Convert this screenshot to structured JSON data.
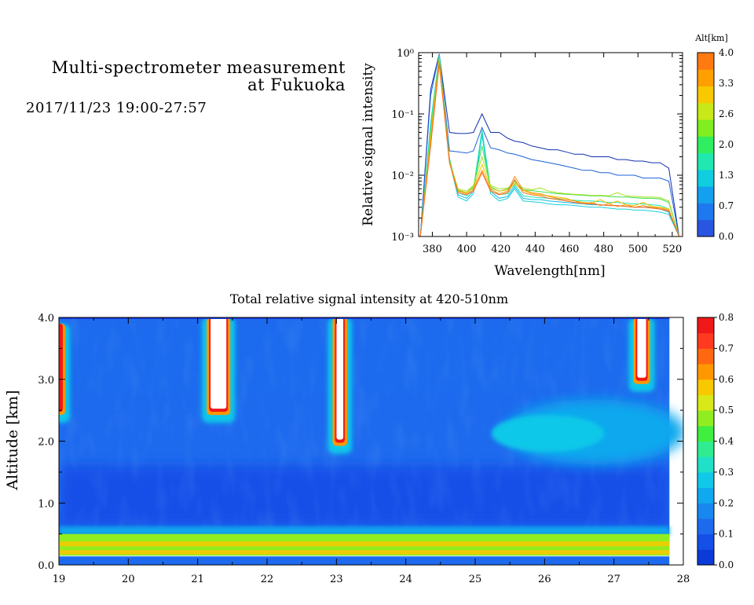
{
  "header": {
    "title_line1": "Multi-spectrometer measurement",
    "title_line2": "at Fukuoka",
    "date_range": "2017/11/23 19:00-27:57"
  },
  "chart_data": [
    {
      "type": "line",
      "title": "",
      "xlabel": "Wavelength[nm]",
      "ylabel": "Relative signal intensity",
      "xlim": [
        372,
        526
      ],
      "ylim": [
        0.001,
        1
      ],
      "yscale": "log",
      "xticks": [
        "380",
        "400",
        "420",
        "440",
        "460",
        "480",
        "500",
        "520"
      ],
      "yticks": [
        "10⁰",
        "10⁻¹",
        "10⁻²",
        "10⁻³"
      ],
      "grid": false,
      "colorbar": {
        "label": "Alt[km]",
        "ticks": [
          "4.0",
          "3.3",
          "2.6",
          "2.0",
          "1.3",
          "0.7",
          "0.0"
        ],
        "colors": [
          "#2a55e0",
          "#1e78ee",
          "#14a0ee",
          "#10cde0",
          "#20e8b0",
          "#30ee60",
          "#80ee20",
          "#c8e818",
          "#f8c800",
          "#ffa000",
          "#ff7a10"
        ]
      },
      "x": [
        373,
        379,
        384,
        390,
        395,
        400,
        404,
        409,
        414,
        419,
        424,
        428,
        433,
        438,
        443,
        448,
        453,
        458,
        463,
        468,
        473,
        478,
        483,
        488,
        493,
        498,
        503,
        508,
        513,
        518,
        524
      ],
      "series": [
        {
          "color": "#1030b0",
          "values": [
            0.001,
            0.25,
            0.95,
            0.05,
            0.048,
            0.048,
            0.05,
            0.1,
            0.05,
            0.05,
            0.04,
            0.036,
            0.034,
            0.03,
            0.028,
            0.026,
            0.026,
            0.024,
            0.022,
            0.022,
            0.02,
            0.02,
            0.02,
            0.018,
            0.018,
            0.017,
            0.017,
            0.016,
            0.016,
            0.013,
            0.001
          ]
        },
        {
          "color": "#1e60d8",
          "values": [
            0.001,
            0.2,
            0.95,
            0.025,
            0.024,
            0.023,
            0.025,
            0.06,
            0.028,
            0.026,
            0.023,
            0.022,
            0.02,
            0.018,
            0.017,
            0.016,
            0.015,
            0.014,
            0.013,
            0.012,
            0.012,
            0.011,
            0.011,
            0.01,
            0.01,
            0.01,
            0.009,
            0.009,
            0.009,
            0.008,
            0.001
          ]
        },
        {
          "color": "#10b8e8",
          "values": [
            0.001,
            0.07,
            0.9,
            0.018,
            0.0048,
            0.0042,
            0.0055,
            0.05,
            0.0055,
            0.0042,
            0.0045,
            0.0065,
            0.0042,
            0.004,
            0.004,
            0.0038,
            0.0037,
            0.0036,
            0.0035,
            0.0034,
            0.0033,
            0.0033,
            0.0032,
            0.0032,
            0.0031,
            0.003,
            0.003,
            0.003,
            0.0028,
            0.0025,
            0.001
          ]
        },
        {
          "color": "#18d0d8",
          "values": [
            0.001,
            0.06,
            0.9,
            0.017,
            0.0044,
            0.0038,
            0.005,
            0.045,
            0.005,
            0.0038,
            0.0042,
            0.006,
            0.0038,
            0.0037,
            0.0036,
            0.0034,
            0.0033,
            0.0033,
            0.0032,
            0.0031,
            0.003,
            0.003,
            0.0029,
            0.0028,
            0.0028,
            0.0027,
            0.0027,
            0.0026,
            0.0025,
            0.0023,
            0.001
          ]
        },
        {
          "color": "#20e4b0",
          "values": [
            0.001,
            0.065,
            0.92,
            0.019,
            0.0052,
            0.0046,
            0.006,
            0.055,
            0.006,
            0.0048,
            0.005,
            0.007,
            0.0046,
            0.0044,
            0.0043,
            0.0042,
            0.0041,
            0.004,
            0.0039,
            0.0038,
            0.0038,
            0.0037,
            0.0036,
            0.0036,
            0.0035,
            0.0034,
            0.0034,
            0.0033,
            0.0032,
            0.0028,
            0.001
          ]
        },
        {
          "color": "#40e050",
          "values": [
            0.001,
            0.05,
            0.85,
            0.018,
            0.0056,
            0.0052,
            0.0065,
            0.03,
            0.0065,
            0.0055,
            0.006,
            0.008,
            0.0058,
            0.0056,
            0.0054,
            0.0052,
            0.005,
            0.0049,
            0.0048,
            0.0047,
            0.0046,
            0.0046,
            0.0045,
            0.0044,
            0.0044,
            0.0043,
            0.0042,
            0.0042,
            0.0041,
            0.0036,
            0.001
          ]
        },
        {
          "color": "#a8e020",
          "values": [
            0.001,
            0.045,
            0.8,
            0.017,
            0.006,
            0.0055,
            0.0068,
            0.02,
            0.0068,
            0.006,
            0.0062,
            0.0075,
            0.0062,
            0.0058,
            0.0062,
            0.0055,
            0.0052,
            0.005,
            0.0049,
            0.0048,
            0.0047,
            0.0047,
            0.0046,
            0.0052,
            0.0046,
            0.0045,
            0.0044,
            0.0044,
            0.0043,
            0.0038,
            0.001
          ]
        },
        {
          "color": "#f0c000",
          "values": [
            0.001,
            0.04,
            0.75,
            0.016,
            0.0058,
            0.0052,
            0.0062,
            0.015,
            0.0062,
            0.0055,
            0.0058,
            0.0072,
            0.0056,
            0.005,
            0.0048,
            0.0046,
            0.0044,
            0.0042,
            0.0038,
            0.0036,
            0.0035,
            0.004,
            0.0034,
            0.0038,
            0.0033,
            0.0032,
            0.0036,
            0.0031,
            0.003,
            0.0028,
            0.001
          ]
        },
        {
          "color": "#ff9010",
          "values": [
            0.001,
            0.035,
            0.7,
            0.016,
            0.0055,
            0.005,
            0.0058,
            0.012,
            0.0058,
            0.005,
            0.0055,
            0.0095,
            0.0058,
            0.0052,
            0.005,
            0.0045,
            0.0042,
            0.004,
            0.0038,
            0.0034,
            0.0036,
            0.0032,
            0.0034,
            0.0031,
            0.0033,
            0.003,
            0.0032,
            0.003,
            0.0029,
            0.0027,
            0.001
          ]
        },
        {
          "color": "#ff6a20",
          "values": [
            0.001,
            0.03,
            0.65,
            0.016,
            0.0052,
            0.0048,
            0.0055,
            0.011,
            0.0055,
            0.0048,
            0.0052,
            0.0085,
            0.0052,
            0.0048,
            0.0046,
            0.0042,
            0.004,
            0.0038,
            0.0036,
            0.0035,
            0.0034,
            0.0033,
            0.0032,
            0.0032,
            0.0031,
            0.003,
            0.003,
            0.0029,
            0.0028,
            0.0026,
            0.001
          ]
        }
      ]
    },
    {
      "type": "heatmap",
      "title": "Total relative signal intensity at 420-510nm",
      "xlabel": "",
      "ylabel": "Altitude [km]",
      "xlim": [
        19,
        28
      ],
      "ylim": [
        0,
        4
      ],
      "xticks": [
        "19",
        "20",
        "21",
        "22",
        "23",
        "24",
        "25",
        "26",
        "27",
        "28"
      ],
      "yticks": [
        "4.0",
        "3.0",
        "2.0",
        "1.0",
        "0.0"
      ],
      "colorbar": {
        "ticks": [
          "0.8",
          "0.7",
          "0.6",
          "0.5",
          "0.4",
          "0.3",
          "0.2",
          "0.1",
          "0.0"
        ],
        "colors": [
          "#0a3ad8",
          "#1450e8",
          "#1e6aee",
          "#1888f0",
          "#10a8ee",
          "#10c8e8",
          "#20e0c8",
          "#30ec90",
          "#40ee40",
          "#90ee20",
          "#d8e818",
          "#f8c800",
          "#ff9800",
          "#ff6810",
          "#ff3a20",
          "#f01818"
        ]
      },
      "background_level": 0.12,
      "features": [
        {
          "x": 21.3,
          "alt_bottom": 2.5,
          "alt_top": 4.0,
          "width_hours": 0.25,
          "level": 0.85,
          "kind": "saturated"
        },
        {
          "x": 23.05,
          "alt_bottom": 2.0,
          "alt_top": 4.0,
          "width_hours": 0.12,
          "level": 0.85,
          "kind": "saturated"
        },
        {
          "x": 27.4,
          "alt_bottom": 3.0,
          "alt_top": 4.0,
          "width_hours": 0.15,
          "level": 0.85,
          "kind": "saturated"
        },
        {
          "x": 19.02,
          "alt_bottom": 2.5,
          "alt_top": 3.9,
          "width_hours": 0.05,
          "level": 0.7,
          "kind": "plume"
        },
        {
          "x": 25.2,
          "x_end": 27.8,
          "alt_bottom": 1.7,
          "alt_top": 2.6,
          "level": 0.3,
          "kind": "layer"
        },
        {
          "x": 19.0,
          "x_end": 27.8,
          "alt_bottom": 0.15,
          "alt_top": 0.55,
          "level": 0.45,
          "kind": "surface-layer"
        }
      ]
    }
  ]
}
